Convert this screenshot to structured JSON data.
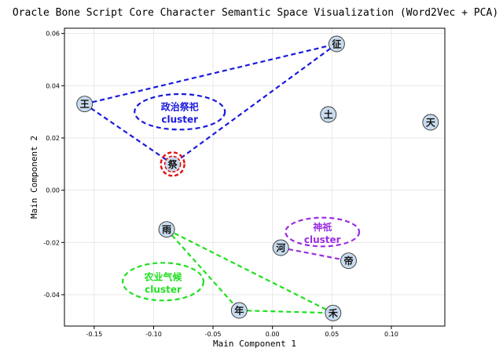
{
  "chart_data": {
    "type": "scatter",
    "title": "Oracle Bone Script Core Character Semantic Space Visualization (Word2Vec + PCA)",
    "xlabel": "Main Component 1",
    "ylabel": "Main Component 2",
    "xlim": [
      -0.175,
      0.145
    ],
    "ylim": [
      -0.052,
      0.062
    ],
    "x_ticks": [
      "-0.15",
      "-0.10",
      "-0.05",
      "0.00",
      "0.05",
      "0.10"
    ],
    "x_tick_values": [
      -0.15,
      -0.1,
      -0.05,
      0.0,
      0.05,
      0.1
    ],
    "y_ticks": [
      "0.06",
      "0.04",
      "0.02",
      "0.00",
      "-0.02",
      "-0.04"
    ],
    "y_tick_values": [
      0.06,
      0.04,
      0.02,
      0.0,
      -0.02,
      -0.04
    ],
    "grid": true,
    "points": [
      {
        "label": "征",
        "x": 0.054,
        "y": 0.056
      },
      {
        "label": "王",
        "x": -0.158,
        "y": 0.033
      },
      {
        "label": "土",
        "x": 0.047,
        "y": 0.029
      },
      {
        "label": "天",
        "x": 0.133,
        "y": 0.026
      },
      {
        "label": "祭",
        "x": -0.084,
        "y": 0.01
      },
      {
        "label": "雨",
        "x": -0.089,
        "y": -0.015
      },
      {
        "label": "河",
        "x": 0.007,
        "y": -0.022
      },
      {
        "label": "帝",
        "x": 0.064,
        "y": -0.027
      },
      {
        "label": "年",
        "x": -0.028,
        "y": -0.046
      },
      {
        "label": "禾",
        "x": 0.051,
        "y": -0.047
      }
    ],
    "clusters": [
      {
        "name": "政治祭祀",
        "name2": "cluster",
        "color": "#1a1adc",
        "members": [
          "王",
          "征",
          "祭"
        ],
        "cx": -0.078,
        "cy": 0.03,
        "rx": 0.038,
        "ry": 0.0068
      },
      {
        "name": "神祇",
        "name2": "cluster",
        "color": "#9b2ee0",
        "members": [
          "河",
          "帝"
        ],
        "cx": 0.042,
        "cy": -0.016,
        "rx": 0.031,
        "ry": 0.0055
      },
      {
        "name": "农业气候",
        "name2": "cluster",
        "color": "#20e020",
        "members": [
          "雨",
          "年",
          "禾"
        ],
        "cx": -0.092,
        "cy": -0.035,
        "rx": 0.034,
        "ry": 0.0072
      }
    ],
    "highlight": {
      "label": "祭",
      "color": "#e01010"
    }
  }
}
